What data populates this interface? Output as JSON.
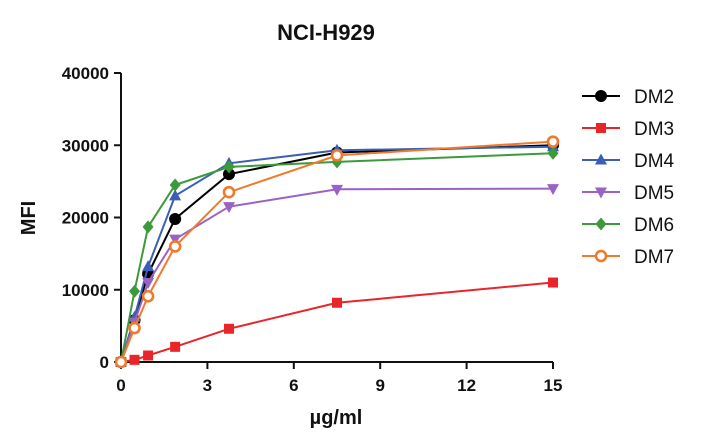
{
  "chart_data": {
    "type": "line",
    "title": "NCI-H929",
    "xlabel": "µg/ml",
    "ylabel": "MFI",
    "xlim": [
      0,
      15
    ],
    "ylim": [
      0,
      40000
    ],
    "xticks": [
      0,
      3,
      6,
      9,
      12,
      15
    ],
    "yticks": [
      0,
      10000,
      20000,
      30000,
      40000
    ],
    "x": [
      0,
      0.47,
      0.94,
      1.88,
      3.75,
      7.5,
      15
    ],
    "grid": false,
    "legend_position": "right",
    "series": [
      {
        "name": "DM2",
        "color": "#000000",
        "marker": "circle",
        "values": [
          0,
          5800,
          12200,
          19800,
          26000,
          29000,
          30000
        ]
      },
      {
        "name": "DM3",
        "color": "#e8262a",
        "marker": "square",
        "values": [
          0,
          300,
          900,
          2100,
          4600,
          8200,
          11000
        ]
      },
      {
        "name": "DM4",
        "color": "#3a5fb4",
        "marker": "triangle-up",
        "values": [
          0,
          6200,
          13200,
          23000,
          27500,
          29300,
          29800
        ]
      },
      {
        "name": "DM5",
        "color": "#9b62c6",
        "marker": "triangle-down",
        "values": [
          0,
          5500,
          11000,
          17000,
          21500,
          23900,
          24000
        ]
      },
      {
        "name": "DM6",
        "color": "#3c9a3c",
        "marker": "diamond",
        "values": [
          0,
          9800,
          18700,
          24500,
          27000,
          27700,
          28900
        ]
      },
      {
        "name": "DM7",
        "color": "#f07a2a",
        "marker": "circle-open",
        "values": [
          0,
          4700,
          9100,
          16000,
          23500,
          28600,
          30500
        ]
      }
    ]
  }
}
